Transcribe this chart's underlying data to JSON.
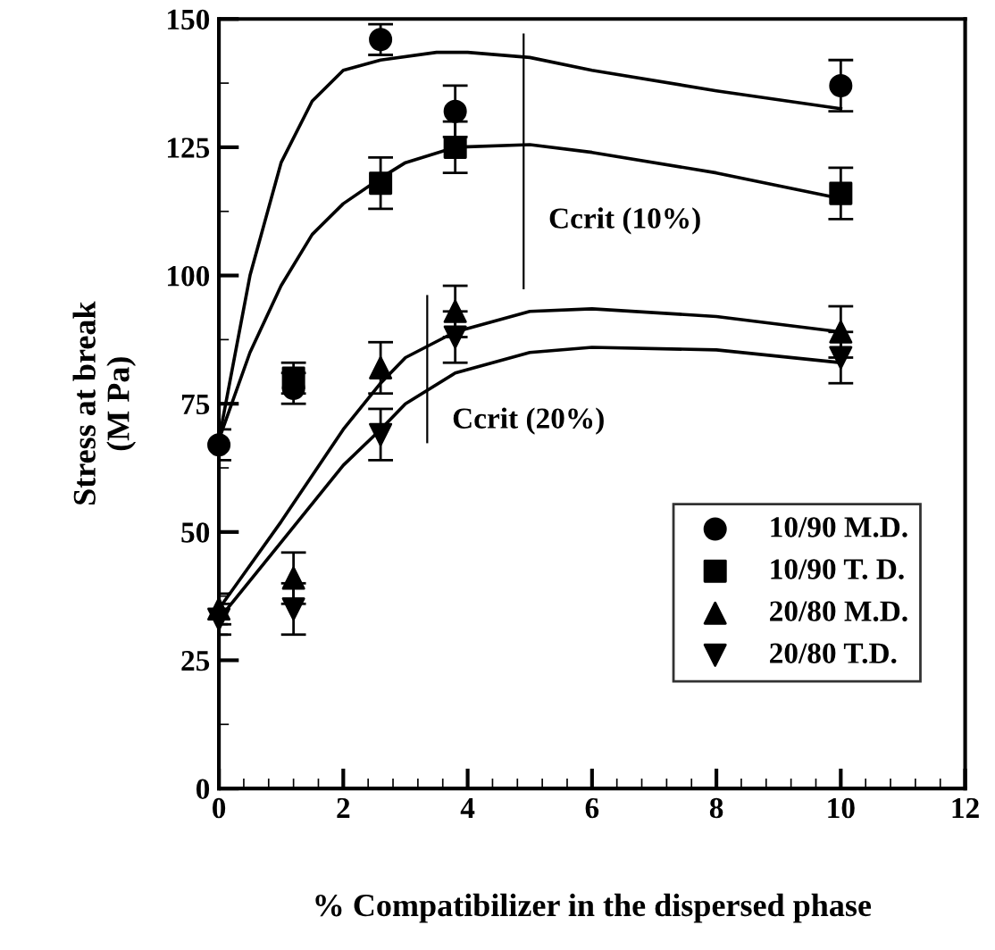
{
  "chart_data": {
    "type": "scatter",
    "xlabel": "% Compatibilizer in the dispersed phase",
    "ylabel": "Stress at break\n(M Pa)",
    "xlim": [
      0,
      12
    ],
    "ylim": [
      0,
      150
    ],
    "xticks": [
      0,
      2,
      4,
      6,
      8,
      10,
      12
    ],
    "yticks": [
      0,
      25,
      50,
      75,
      100,
      125,
      150
    ],
    "grid": false,
    "legend": "bottom right",
    "series": [
      {
        "name": "10/90 M.D.",
        "color": "#000000",
        "marker": "circle",
        "x": [
          0,
          1.2,
          2.6,
          3.8,
          10
        ],
        "values": [
          67,
          78,
          146,
          132,
          137
        ],
        "errors": [
          3,
          3,
          3,
          5,
          5
        ]
      },
      {
        "name": "10/90 T. D.",
        "color": "#000000",
        "marker": "square",
        "x": [
          1.2,
          2.6,
          3.8,
          10
        ],
        "values": [
          80,
          118,
          125,
          116
        ],
        "errors": [
          3,
          5,
          5,
          5
        ]
      },
      {
        "name": "20/80 M.D.",
        "color": "#000000",
        "marker": "triangle",
        "x": [
          0,
          1.2,
          2.6,
          3.8,
          10
        ],
        "values": [
          35,
          41,
          82,
          93,
          89
        ],
        "errors": [
          3,
          5,
          5,
          5,
          5
        ]
      },
      {
        "name": "20/80 T.D.",
        "color": "#000000",
        "marker": "triangle_down",
        "x": [
          0,
          1.2,
          2.6,
          3.8,
          10
        ],
        "values": [
          33,
          35,
          69,
          88,
          84
        ],
        "errors": [
          3,
          5,
          5,
          5,
          5
        ]
      },
      {
        "type": "line",
        "color": "#000000",
        "x": [
          0,
          0.5,
          1,
          1.5,
          2,
          2.6,
          3.5,
          4,
          5,
          6,
          8,
          10
        ],
        "values": [
          68,
          100,
          122,
          134,
          140,
          142,
          143.5,
          143.5,
          142.5,
          140,
          136,
          132.5
        ]
      },
      {
        "type": "line",
        "color": "#000000",
        "x": [
          0,
          0.5,
          1,
          1.5,
          2,
          2.6,
          3,
          3.8,
          5,
          6,
          8,
          10
        ],
        "values": [
          68,
          85,
          98,
          108,
          114,
          119,
          122,
          125,
          125.5,
          124,
          120,
          115
        ]
      },
      {
        "type": "line",
        "color": "#000000",
        "x": [
          0,
          1,
          2,
          2.6,
          3,
          3.8,
          5,
          6,
          8,
          10
        ],
        "values": [
          35,
          52,
          70,
          79,
          84,
          89,
          93,
          93.5,
          92,
          89
        ]
      },
      {
        "type": "line",
        "color": "#000000",
        "x": [
          0,
          1,
          2,
          2.6,
          3,
          3.8,
          5,
          6,
          8,
          10
        ],
        "values": [
          33,
          48,
          63,
          70,
          75,
          81,
          85,
          86,
          85.5,
          83
        ]
      }
    ],
    "ref_lines": [
      {
        "axis": "x",
        "value": 4.9,
        "label": "Ccrit (10%)",
        "color": "#000000"
      },
      {
        "axis": "x",
        "value": 3.35,
        "label": "Ccrit (20%)",
        "color": "#000000"
      }
    ]
  }
}
